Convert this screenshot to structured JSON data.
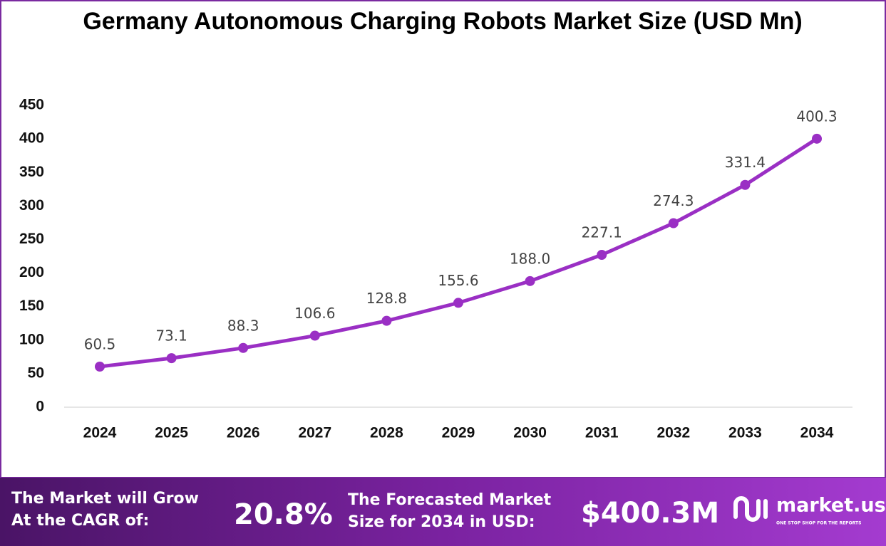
{
  "chart_data": {
    "type": "line",
    "title": "Germany Autonomous Charging Robots Market Size (USD Mn)",
    "categories": [
      "2024",
      "2025",
      "2026",
      "2027",
      "2028",
      "2029",
      "2030",
      "2031",
      "2032",
      "2033",
      "2034"
    ],
    "series": [
      {
        "name": "Market Size",
        "color": "#9a2fc4",
        "values": [
          60.5,
          73.1,
          88.3,
          106.6,
          128.8,
          155.6,
          188.0,
          227.1,
          274.3,
          331.4,
          400.3
        ],
        "value_labels": [
          "60.5",
          "73.1",
          "88.3",
          "106.6",
          "128.8",
          "155.6",
          "188.0",
          "227.1",
          "274.3",
          "331.4",
          "400.3"
        ]
      }
    ],
    "ylim": [
      0,
      450
    ],
    "yticks": [
      0,
      50,
      100,
      150,
      200,
      250,
      300,
      350,
      400,
      450
    ],
    "grid": false
  },
  "footer": {
    "cagr_label": [
      "The Market will Grow",
      "At the CAGR of:"
    ],
    "cagr_value": "20.8%",
    "forecast_label": [
      "The Forecasted Market",
      "Size for 2034 in USD:"
    ],
    "forecast_value": "$400.3M",
    "logo": "market.us",
    "tagline": "ONE STOP SHOP FOR THE REPORTS"
  }
}
